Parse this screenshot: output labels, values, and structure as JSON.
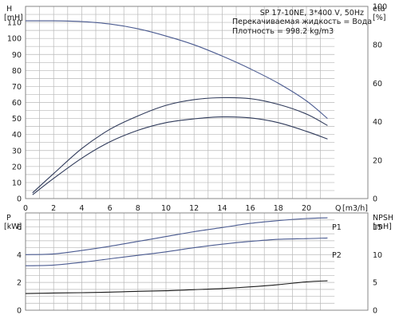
{
  "chart_data": [
    {
      "type": "line",
      "panel": "head-efficiency",
      "title": "SP 17-10NE, 3*400 V, 50Hz",
      "annotations": [
        "Перекачиваемая жидкость = Вода",
        "Плотность = 998.2 kg/m3"
      ],
      "x_axis": {
        "label": "Q",
        "unit": "[m3/h]",
        "range": [
          0,
          22
        ],
        "ticks": [
          0,
          2,
          4,
          6,
          8,
          10,
          12,
          14,
          16,
          18,
          20
        ]
      },
      "y_left": {
        "label": "H",
        "unit": "[mH]",
        "range": [
          0,
          120
        ],
        "ticks": [
          0,
          10,
          20,
          30,
          40,
          50,
          60,
          70,
          80,
          90,
          100,
          110
        ]
      },
      "y_right": {
        "label": "eta",
        "unit": "[%]",
        "range": [
          0,
          100
        ],
        "ticks": [
          0,
          20,
          40,
          60,
          80,
          100
        ]
      },
      "grid": true,
      "series": [
        {
          "axis": "left",
          "color": "#4a5a90",
          "x": [
            0,
            2,
            4,
            6,
            8,
            10,
            12,
            14,
            16,
            18,
            20,
            21.5
          ],
          "y": [
            111,
            111,
            110.5,
            109,
            106,
            101.5,
            96,
            89,
            81,
            72,
            61,
            50
          ]
        },
        {
          "axis": "right",
          "color": "#2f3a5a",
          "x": [
            0.5,
            2,
            4,
            6,
            8,
            10,
            12,
            14,
            16,
            18,
            20,
            21.5
          ],
          "y": [
            3,
            13,
            26,
            36,
            43,
            48.5,
            51.5,
            52.5,
            52,
            49,
            44,
            38
          ]
        },
        {
          "axis": "right",
          "color": "#2f3a5a",
          "x": [
            0.5,
            2,
            4,
            6,
            8,
            10,
            12,
            14,
            16,
            18,
            20,
            21.5
          ],
          "y": [
            2,
            10.5,
            21,
            29.5,
            35.5,
            39.5,
            41.5,
            42.5,
            42,
            39.5,
            35,
            31
          ]
        }
      ]
    },
    {
      "type": "line",
      "panel": "power-npsh",
      "x_axis": {
        "range": [
          0,
          22
        ],
        "ticks": [
          0,
          2,
          4,
          6,
          8,
          10,
          12,
          14,
          16,
          18,
          20
        ]
      },
      "y_left": {
        "label": "P",
        "unit": "[kW]",
        "range": [
          0,
          7
        ],
        "ticks": [
          0,
          2,
          4,
          6
        ]
      },
      "y_right": {
        "label": "NPSH",
        "unit": "[mH]",
        "range": [
          0,
          17.5
        ],
        "ticks": [
          0,
          5,
          10,
          15
        ]
      },
      "grid": true,
      "series": [
        {
          "name": "P1",
          "axis": "left",
          "color": "#4a5a90",
          "x": [
            0,
            2,
            4,
            6,
            8,
            10,
            12,
            14,
            16,
            18,
            20,
            21.5
          ],
          "y": [
            4.0,
            4.05,
            4.3,
            4.6,
            4.95,
            5.3,
            5.65,
            5.95,
            6.25,
            6.45,
            6.6,
            6.65
          ]
        },
        {
          "name": "P2",
          "axis": "left",
          "color": "#4a5a90",
          "x": [
            0,
            2,
            4,
            6,
            8,
            10,
            12,
            14,
            16,
            18,
            20,
            21.5
          ],
          "y": [
            3.2,
            3.25,
            3.45,
            3.7,
            3.95,
            4.2,
            4.5,
            4.75,
            4.95,
            5.1,
            5.15,
            5.2
          ]
        },
        {
          "axis": "right",
          "color": "#1a1a1a",
          "x": [
            0,
            2,
            4,
            6,
            8,
            10,
            12,
            14,
            16,
            18,
            20,
            21.5
          ],
          "y": [
            3.0,
            3.1,
            3.15,
            3.25,
            3.4,
            3.5,
            3.7,
            3.9,
            4.2,
            4.6,
            5.1,
            5.3
          ]
        }
      ]
    }
  ]
}
